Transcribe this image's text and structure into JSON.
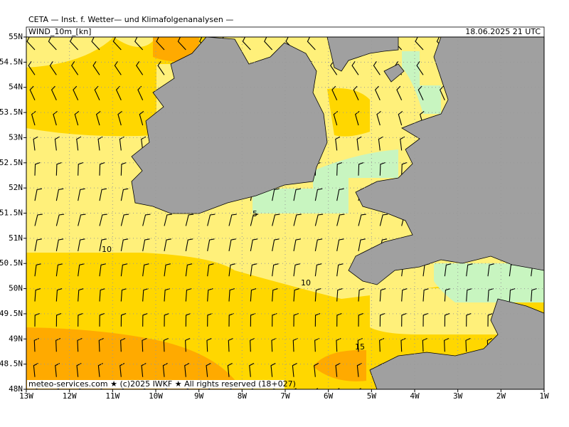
{
  "header": {
    "title": "CETA — Inst. f. Wetter— und Klimafolgenanalysen —",
    "field": "WIND_10m_[kn]",
    "date": "18.06.2025 21 UTC"
  },
  "map": {
    "lat_ticks": [
      {
        "value": 55,
        "label": "55N"
      },
      {
        "value": 54.5,
        "label": "54.5N"
      },
      {
        "value": 54,
        "label": "54N"
      },
      {
        "value": 53.5,
        "label": "53.5N"
      },
      {
        "value": 53,
        "label": "53N"
      },
      {
        "value": 52.5,
        "label": "52.5N"
      },
      {
        "value": 52,
        "label": "52N"
      },
      {
        "value": 51.5,
        "label": "51.5N"
      },
      {
        "value": 51,
        "label": "51N"
      },
      {
        "value": 50.5,
        "label": "50.5N"
      },
      {
        "value": 50,
        "label": "50N"
      },
      {
        "value": 49.5,
        "label": "49.5N"
      },
      {
        "value": 49,
        "label": "49N"
      },
      {
        "value": 48.5,
        "label": "48.5N"
      },
      {
        "value": 48,
        "label": "48N"
      }
    ],
    "lon_ticks": [
      {
        "value": -13,
        "label": "13W"
      },
      {
        "value": -12,
        "label": "12W"
      },
      {
        "value": -11,
        "label": "11W"
      },
      {
        "value": -10,
        "label": "10W"
      },
      {
        "value": -9,
        "label": "9W"
      },
      {
        "value": -8,
        "label": "8W"
      },
      {
        "value": -7,
        "label": "7W"
      },
      {
        "value": -6,
        "label": "6W"
      },
      {
        "value": -5,
        "label": "5W"
      },
      {
        "value": -4,
        "label": "4W"
      },
      {
        "value": -3,
        "label": "3W"
      },
      {
        "value": -2,
        "label": "2W"
      },
      {
        "value": -1,
        "label": "1W"
      }
    ],
    "contour_labels": [
      5,
      10,
      10,
      15
    ]
  },
  "footer": "meteo-services.com ★ (c)2025 IWKF ★ All rights reserved (18+027)"
}
